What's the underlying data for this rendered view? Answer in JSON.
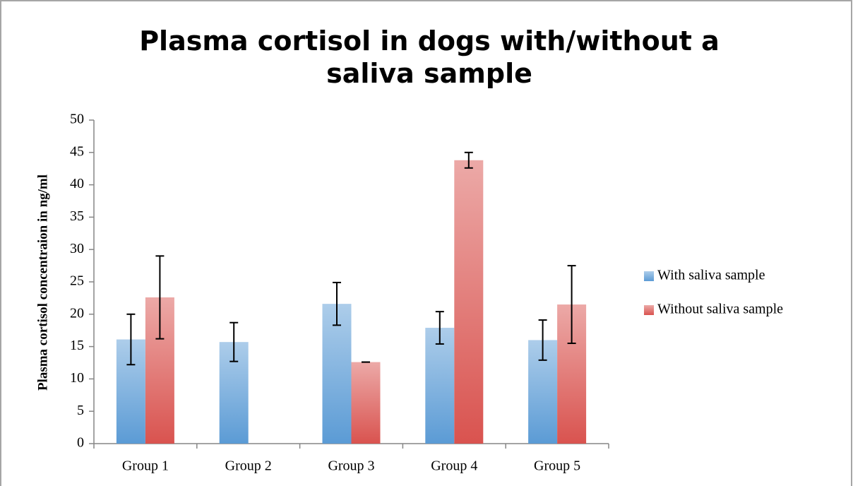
{
  "chart_data": {
    "type": "bar",
    "title": "Plasma cortisol in dogs with/without a saliva sample",
    "y_label": "Plasma cortisol concentraion in ng/ml",
    "categories": [
      "Group 1",
      "Group 2",
      "Group 3",
      "Group 4",
      "Group 5"
    ],
    "series": [
      {
        "name": "With saliva sample",
        "color": "#5b9bd5",
        "values": [
          16.1,
          15.7,
          21.6,
          17.9,
          16.0
        ],
        "errors": [
          3.9,
          3.0,
          3.3,
          2.5,
          3.1
        ]
      },
      {
        "name": "Without saliva sample",
        "color": "#d9534f",
        "values": [
          22.6,
          null,
          12.6,
          43.8,
          21.5
        ],
        "errors": [
          6.4,
          null,
          0,
          1.2,
          6.0
        ]
      }
    ],
    "ylim": [
      0,
      50
    ],
    "yticks": [
      0,
      5,
      10,
      15,
      20,
      25,
      30,
      35,
      40,
      45,
      50
    ],
    "grid": false,
    "legend": "right"
  }
}
